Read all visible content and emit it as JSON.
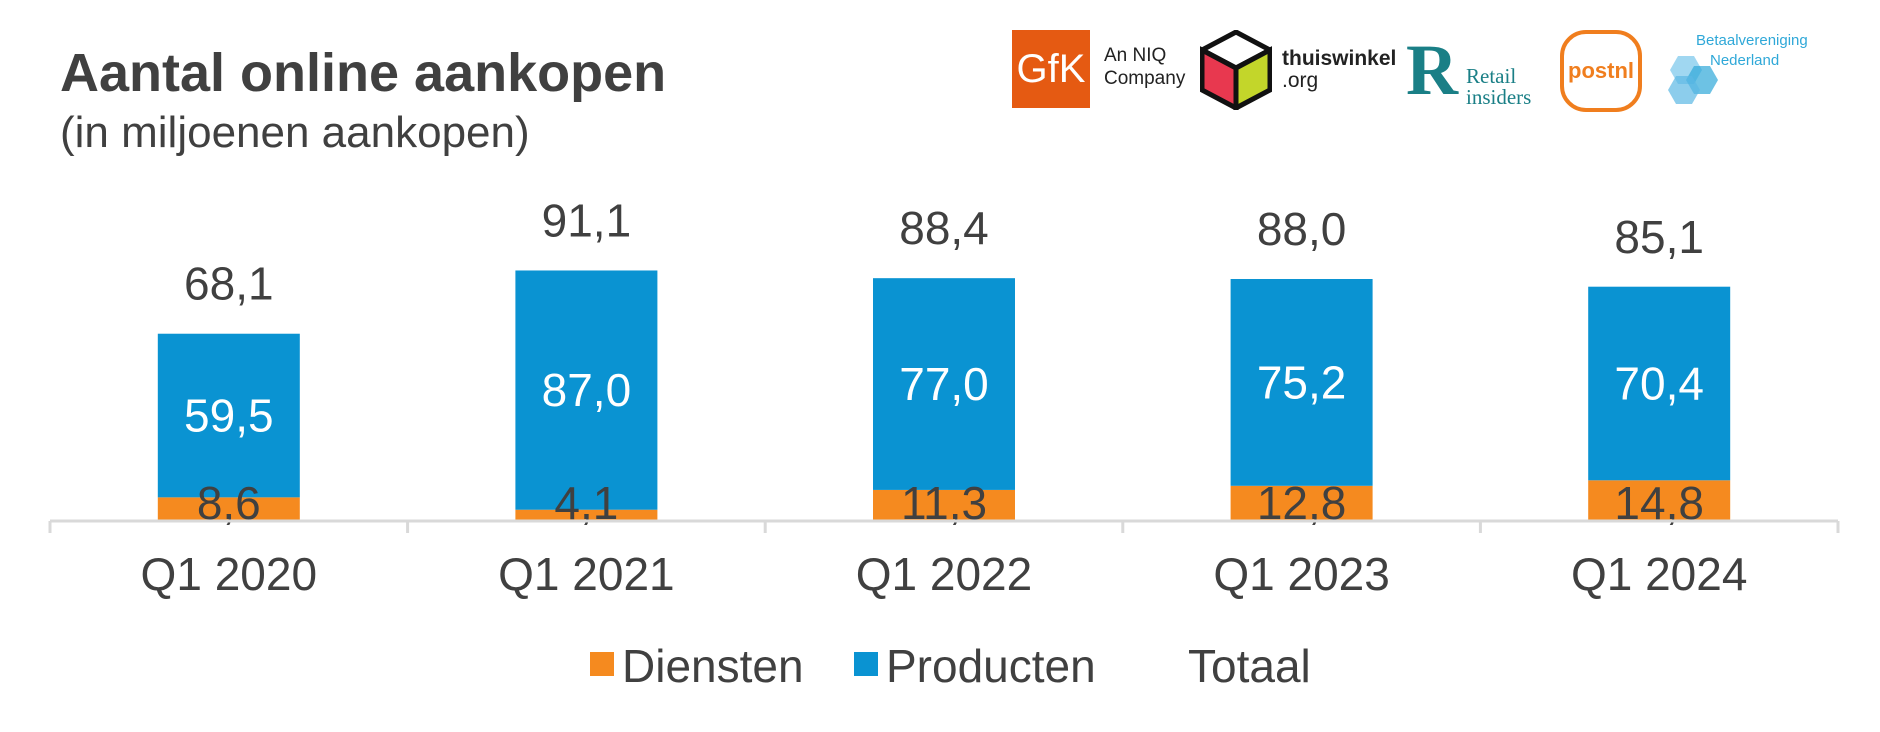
{
  "title": "Aantal online aankopen",
  "subtitle": "(in miljoenen aankopen)",
  "logos": {
    "gfk": "GfK",
    "gfk_tagline_1": "An NIQ",
    "gfk_tagline_2": "Company",
    "thuiswinkel_1": "thuiswinkel",
    "thuiswinkel_2": ".org",
    "retail_mark": "R",
    "retail_1": "Retail",
    "retail_2": "insiders",
    "postnl": "postnl",
    "betaal_1": "Betaalvereniging",
    "betaal_2": "Nederland"
  },
  "colors": {
    "diensten": "#f58a1f",
    "producten": "#0a93d2",
    "axis": "#d9d9d9",
    "text": "#404040"
  },
  "chart_data": {
    "type": "bar",
    "stacked": true,
    "categories": [
      "Q1 2020",
      "Q1 2021",
      "Q1 2022",
      "Q1 2023",
      "Q1 2024"
    ],
    "series": [
      {
        "name": "Diensten",
        "values": [
          8.6,
          4.1,
          11.3,
          12.8,
          14.8
        ],
        "labels": [
          "8,6",
          "4,1",
          "11,3",
          "12,8",
          "14,8"
        ]
      },
      {
        "name": "Producten",
        "values": [
          59.5,
          87.0,
          77.0,
          75.2,
          70.4
        ],
        "labels": [
          "59,5",
          "87,0",
          "77,0",
          "75,2",
          "70,4"
        ]
      }
    ],
    "totals": {
      "name": "Totaal",
      "values": [
        68.1,
        91.1,
        88.4,
        88.0,
        85.1
      ],
      "labels": [
        "68,1",
        "91,1",
        "88,4",
        "88,0",
        "85,1"
      ]
    },
    "ylim": [
      0,
      100
    ],
    "grid": false,
    "legend": "bottom"
  }
}
